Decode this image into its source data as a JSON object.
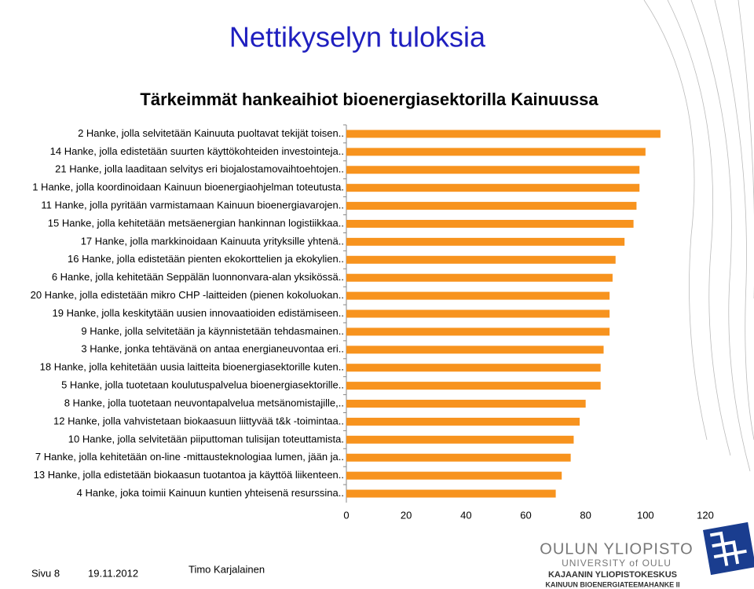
{
  "header": {
    "title": "Nettikyselyn tuloksia"
  },
  "chart_data": {
    "type": "barh",
    "title": "Tärkeimmät hankeaihiot bioenergiasektorilla Kainuussa",
    "categories": [
      "2 Hanke, jolla selvitetään Kainuuta puoltavat tekijät toisen..",
      "14 Hanke, jolla edistetään suurten käyttökohteiden investointeja..",
      "21 Hanke, jolla laaditaan selvitys eri biojalostamovaihtoehtojen..",
      "1 Hanke, jolla koordinoidaan Kainuun bioenergiaohjelman toteutusta.",
      "11 Hanke, jolla pyritään varmistamaan Kainuun bioenergiavarojen..",
      "15 Hanke, jolla kehitetään metsäenergian hankinnan logistiikkaa..",
      "17 Hanke, jolla markkinoidaan Kainuuta yrityksille yhtenä..",
      "16 Hanke, jolla edistetään pienten ekokorttelien ja ekokylien..",
      "6 Hanke, jolla kehitetään Seppälän luonnonvara-alan yksikössä..",
      "20 Hanke, jolla edistetään mikro CHP -laitteiden (pienen kokoluokan..",
      "19 Hanke, jolla keskitytään uusien innovaatioiden edistämiseen..",
      "9 Hanke, jolla selvitetään ja käynnistetään tehdasmainen..",
      "3 Hanke, jonka tehtävänä on antaa energianeuvontaa eri..",
      "18 Hanke, jolla kehitetään uusia laitteita bioenergiasektorille kuten..",
      "5 Hanke, jolla tuotetaan koulutuspalvelua bioenergiasektorille..",
      "8 Hanke, jolla tuotetaan neuvontapalvelua metsänomistajille,..",
      "12  Hanke, jolla vahvistetaan biokaasuun liittyvää t&k -toimintaa..",
      "10 Hanke, jolla selvitetään piiputtoman tulisijan toteuttamista.",
      "7 Hanke, jolla kehitetään on-line -mittausteknologiaa lumen, jään ja..",
      "13 Hanke, jolla edistetään biokaasun tuotantoa ja käyttöä liikenteen..",
      "4 Hanke, joka toimii Kainuun kuntien yhteisenä resurssina.."
    ],
    "values": [
      105,
      100,
      98,
      98,
      97,
      96,
      93,
      90,
      89,
      88,
      88,
      88,
      86,
      85,
      85,
      80,
      78,
      76,
      75,
      72,
      70
    ],
    "color": "#f7931e",
    "xlim": [
      0,
      120
    ],
    "xticks": [
      0,
      20,
      40,
      60,
      80,
      100,
      120
    ]
  },
  "footer": {
    "page": "Sivu 8",
    "date": "19.11.2012",
    "author": "Timo Karjalainen",
    "logo1": "OULUN YLIOPISTO",
    "logo2": "UNIVERSITY of OULU",
    "logo3": "KAJAANIN YLIOPISTOKESKUS",
    "project": "KAINUUN BIOENERGIATEEMAHANKE II"
  }
}
